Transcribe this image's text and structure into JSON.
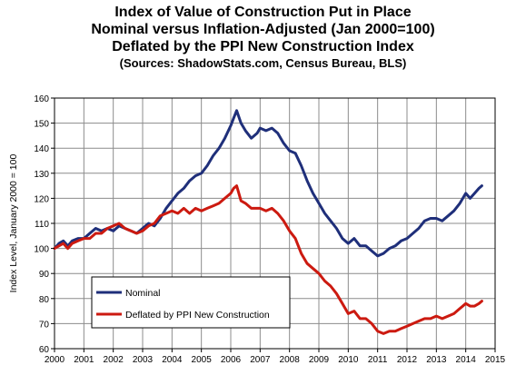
{
  "chart_data": {
    "type": "line",
    "title_lines": [
      "Index of Value of Construction Put in Place",
      "Nominal versus Inflation-Adjusted  (Jan 2000=100)",
      "Deflated by the PPI New Construction Index"
    ],
    "source": "(Sources: ShadowStats.com, Census Bureau, BLS)",
    "ylabel": "Index Level, January 2000 = 100",
    "xlabel": "",
    "xlim": [
      2000,
      2015
    ],
    "ylim": [
      60,
      160
    ],
    "x_ticks": [
      "2000",
      "2001",
      "2002",
      "2003",
      "2004",
      "2005",
      "2006",
      "2007",
      "2008",
      "2009",
      "2010",
      "2011",
      "2012",
      "2013",
      "2014",
      "2015"
    ],
    "y_ticks": [
      "60",
      "70",
      "80",
      "90",
      "100",
      "110",
      "120",
      "130",
      "140",
      "150",
      "160"
    ],
    "grid": true,
    "legend_position": "lower-left",
    "series": [
      {
        "name": "Nominal",
        "color": "#1f2f7a",
        "points": [
          [
            2000.0,
            100
          ],
          [
            2000.15,
            102
          ],
          [
            2000.3,
            103
          ],
          [
            2000.45,
            101
          ],
          [
            2000.6,
            103
          ],
          [
            2000.8,
            104
          ],
          [
            2001.0,
            104
          ],
          [
            2001.2,
            106
          ],
          [
            2001.4,
            108
          ],
          [
            2001.6,
            107
          ],
          [
            2001.8,
            108
          ],
          [
            2002.0,
            107
          ],
          [
            2002.2,
            109
          ],
          [
            2002.4,
            108
          ],
          [
            2002.6,
            107
          ],
          [
            2002.8,
            106
          ],
          [
            2003.0,
            108
          ],
          [
            2003.2,
            110
          ],
          [
            2003.4,
            109
          ],
          [
            2003.6,
            112
          ],
          [
            2003.8,
            116
          ],
          [
            2004.0,
            119
          ],
          [
            2004.2,
            122
          ],
          [
            2004.4,
            124
          ],
          [
            2004.6,
            127
          ],
          [
            2004.8,
            129
          ],
          [
            2005.0,
            130
          ],
          [
            2005.2,
            133
          ],
          [
            2005.4,
            137
          ],
          [
            2005.6,
            140
          ],
          [
            2005.8,
            144
          ],
          [
            2006.0,
            149
          ],
          [
            2006.1,
            152
          ],
          [
            2006.2,
            155
          ],
          [
            2006.35,
            150
          ],
          [
            2006.5,
            147
          ],
          [
            2006.7,
            144
          ],
          [
            2006.9,
            146
          ],
          [
            2007.0,
            148
          ],
          [
            2007.2,
            147
          ],
          [
            2007.4,
            148
          ],
          [
            2007.6,
            146
          ],
          [
            2007.8,
            142
          ],
          [
            2008.0,
            139
          ],
          [
            2008.2,
            138
          ],
          [
            2008.4,
            133
          ],
          [
            2008.6,
            127
          ],
          [
            2008.8,
            122
          ],
          [
            2009.0,
            118
          ],
          [
            2009.2,
            114
          ],
          [
            2009.4,
            111
          ],
          [
            2009.6,
            108
          ],
          [
            2009.8,
            104
          ],
          [
            2010.0,
            102
          ],
          [
            2010.2,
            104
          ],
          [
            2010.4,
            101
          ],
          [
            2010.6,
            101
          ],
          [
            2010.8,
            99
          ],
          [
            2011.0,
            97
          ],
          [
            2011.2,
            98
          ],
          [
            2011.4,
            100
          ],
          [
            2011.6,
            101
          ],
          [
            2011.8,
            103
          ],
          [
            2012.0,
            104
          ],
          [
            2012.2,
            106
          ],
          [
            2012.4,
            108
          ],
          [
            2012.6,
            111
          ],
          [
            2012.8,
            112
          ],
          [
            2013.0,
            112
          ],
          [
            2013.2,
            111
          ],
          [
            2013.4,
            113
          ],
          [
            2013.6,
            115
          ],
          [
            2013.8,
            118
          ],
          [
            2014.0,
            122
          ],
          [
            2014.15,
            120
          ],
          [
            2014.3,
            122
          ],
          [
            2014.45,
            124
          ],
          [
            2014.55,
            125
          ]
        ]
      },
      {
        "name": "Deflated by PPI New Construction",
        "color": "#cc1a10",
        "points": [
          [
            2000.0,
            100
          ],
          [
            2000.15,
            101
          ],
          [
            2000.3,
            102
          ],
          [
            2000.45,
            100
          ],
          [
            2000.6,
            102
          ],
          [
            2000.8,
            103
          ],
          [
            2001.0,
            104
          ],
          [
            2001.2,
            104
          ],
          [
            2001.4,
            106
          ],
          [
            2001.6,
            106
          ],
          [
            2001.8,
            108
          ],
          [
            2002.0,
            109
          ],
          [
            2002.2,
            110
          ],
          [
            2002.4,
            108
          ],
          [
            2002.6,
            107
          ],
          [
            2002.8,
            106
          ],
          [
            2003.0,
            107
          ],
          [
            2003.2,
            109
          ],
          [
            2003.4,
            110
          ],
          [
            2003.6,
            113
          ],
          [
            2003.8,
            114
          ],
          [
            2004.0,
            115
          ],
          [
            2004.2,
            114
          ],
          [
            2004.4,
            116
          ],
          [
            2004.6,
            114
          ],
          [
            2004.8,
            116
          ],
          [
            2005.0,
            115
          ],
          [
            2005.2,
            116
          ],
          [
            2005.4,
            117
          ],
          [
            2005.6,
            118
          ],
          [
            2005.8,
            120
          ],
          [
            2006.0,
            122
          ],
          [
            2006.1,
            124
          ],
          [
            2006.2,
            125
          ],
          [
            2006.35,
            119
          ],
          [
            2006.5,
            118
          ],
          [
            2006.7,
            116
          ],
          [
            2006.9,
            116
          ],
          [
            2007.0,
            116
          ],
          [
            2007.2,
            115
          ],
          [
            2007.4,
            116
          ],
          [
            2007.6,
            114
          ],
          [
            2007.8,
            111
          ],
          [
            2008.0,
            107
          ],
          [
            2008.2,
            104
          ],
          [
            2008.4,
            98
          ],
          [
            2008.6,
            94
          ],
          [
            2008.8,
            92
          ],
          [
            2009.0,
            90
          ],
          [
            2009.2,
            87
          ],
          [
            2009.4,
            85
          ],
          [
            2009.6,
            82
          ],
          [
            2009.8,
            78
          ],
          [
            2010.0,
            74
          ],
          [
            2010.2,
            75
          ],
          [
            2010.4,
            72
          ],
          [
            2010.6,
            72
          ],
          [
            2010.8,
            70
          ],
          [
            2011.0,
            67
          ],
          [
            2011.2,
            66
          ],
          [
            2011.4,
            67
          ],
          [
            2011.6,
            67
          ],
          [
            2011.8,
            68
          ],
          [
            2012.0,
            69
          ],
          [
            2012.2,
            70
          ],
          [
            2012.4,
            71
          ],
          [
            2012.6,
            72
          ],
          [
            2012.8,
            72
          ],
          [
            2013.0,
            73
          ],
          [
            2013.2,
            72
          ],
          [
            2013.4,
            73
          ],
          [
            2013.6,
            74
          ],
          [
            2013.8,
            76
          ],
          [
            2014.0,
            78
          ],
          [
            2014.15,
            77
          ],
          [
            2014.3,
            77
          ],
          [
            2014.45,
            78
          ],
          [
            2014.55,
            79
          ]
        ]
      }
    ]
  }
}
